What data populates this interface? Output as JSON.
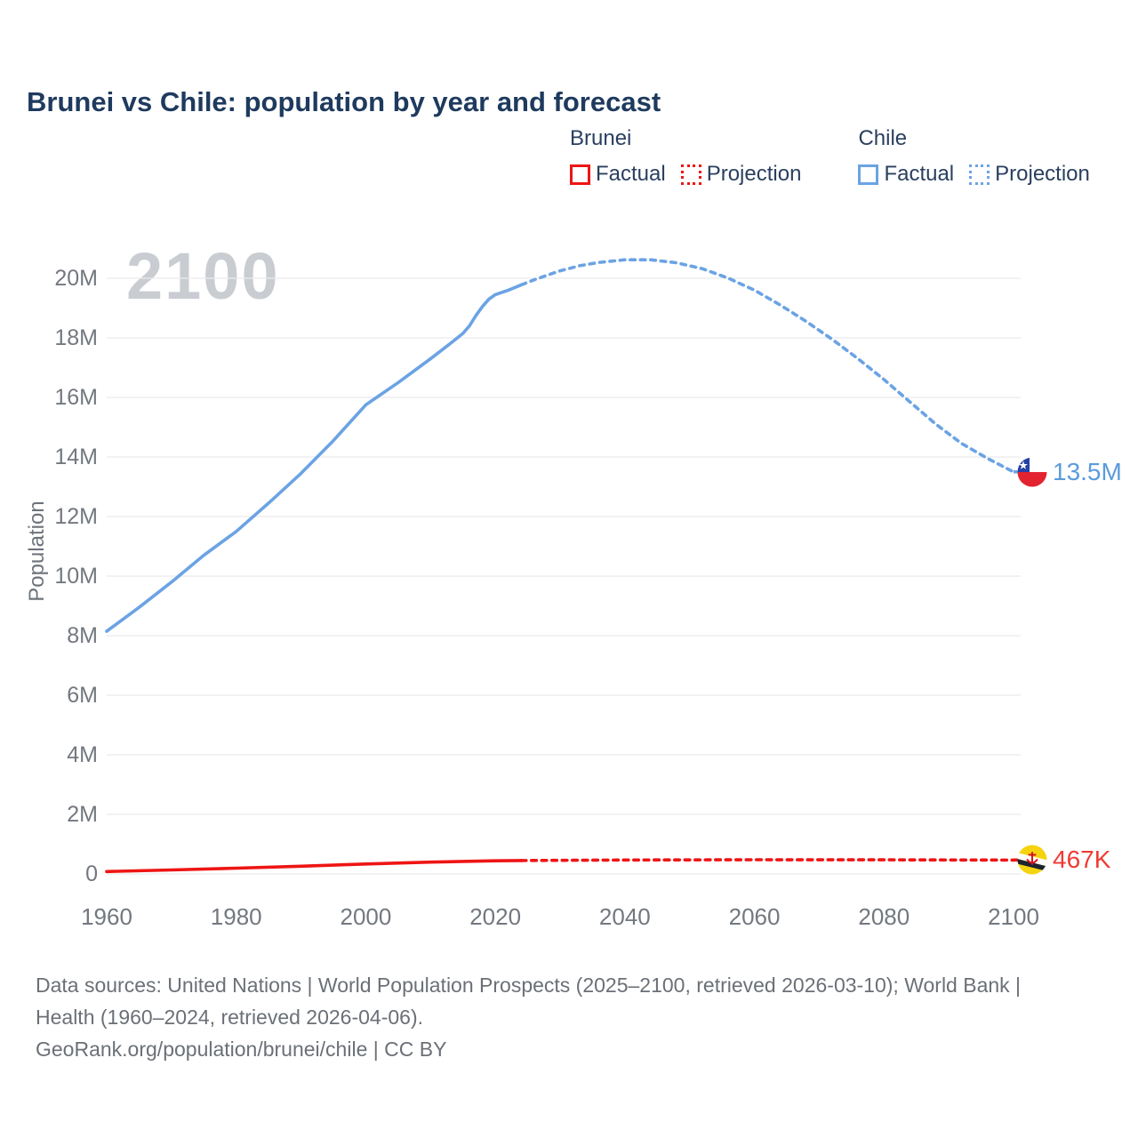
{
  "title": "Brunei vs Chile: population by year and forecast",
  "watermark": "2100",
  "legend": {
    "groups": [
      {
        "name": "Brunei",
        "color": "#ee1515",
        "items": [
          {
            "label": "Factual",
            "style": "solid"
          },
          {
            "label": "Projection",
            "style": "dotted"
          }
        ]
      },
      {
        "name": "Chile",
        "color": "#6ba3e4",
        "items": [
          {
            "label": "Factual",
            "style": "solid"
          },
          {
            "label": "Projection",
            "style": "dotted"
          }
        ]
      }
    ]
  },
  "chart_data": {
    "type": "line",
    "title": "Brunei vs Chile: population by year and forecast",
    "xlabel": "",
    "ylabel": "Population",
    "xlim": [
      1960,
      2100
    ],
    "ylim": [
      0,
      21000000
    ],
    "grid": "horizontal",
    "legend_position": "top-right",
    "xticks": [
      {
        "value": 1960,
        "label": "1960"
      },
      {
        "value": 1980,
        "label": "1980"
      },
      {
        "value": 2000,
        "label": "2000"
      },
      {
        "value": 2020,
        "label": "2020"
      },
      {
        "value": 2040,
        "label": "2040"
      },
      {
        "value": 2060,
        "label": "2060"
      },
      {
        "value": 2080,
        "label": "2080"
      },
      {
        "value": 2100,
        "label": "2100"
      }
    ],
    "yticks": [
      {
        "value": 0,
        "label": "0"
      },
      {
        "value": 2000000,
        "label": "2M"
      },
      {
        "value": 4000000,
        "label": "4M"
      },
      {
        "value": 6000000,
        "label": "6M"
      },
      {
        "value": 8000000,
        "label": "8M"
      },
      {
        "value": 10000000,
        "label": "10M"
      },
      {
        "value": 12000000,
        "label": "12M"
      },
      {
        "value": 14000000,
        "label": "14M"
      },
      {
        "value": 16000000,
        "label": "16M"
      },
      {
        "value": 18000000,
        "label": "18M"
      },
      {
        "value": 20000000,
        "label": "20M"
      }
    ],
    "series": [
      {
        "name": "Chile Factual",
        "color": "#6ba3e4",
        "dash": "solid",
        "points": [
          [
            1960,
            8150000
          ],
          [
            1965,
            8950000
          ],
          [
            1970,
            9800000
          ],
          [
            1975,
            10700000
          ],
          [
            1980,
            11500000
          ],
          [
            1985,
            12450000
          ],
          [
            1990,
            13450000
          ],
          [
            1995,
            14550000
          ],
          [
            2000,
            15750000
          ],
          [
            2005,
            16500000
          ],
          [
            2010,
            17300000
          ],
          [
            2013,
            17800000
          ],
          [
            2015,
            18150000
          ],
          [
            2016,
            18400000
          ],
          [
            2017,
            18750000
          ],
          [
            2018,
            19050000
          ],
          [
            2019,
            19300000
          ],
          [
            2020,
            19450000
          ],
          [
            2022,
            19600000
          ],
          [
            2024,
            19780000
          ]
        ]
      },
      {
        "name": "Chile Projection",
        "color": "#6ba3e4",
        "dash": "dotted",
        "points": [
          [
            2024,
            19780000
          ],
          [
            2026,
            19950000
          ],
          [
            2028,
            20100000
          ],
          [
            2030,
            20250000
          ],
          [
            2033,
            20420000
          ],
          [
            2036,
            20530000
          ],
          [
            2040,
            20620000
          ],
          [
            2044,
            20620000
          ],
          [
            2048,
            20520000
          ],
          [
            2052,
            20320000
          ],
          [
            2056,
            20000000
          ],
          [
            2060,
            19600000
          ],
          [
            2064,
            19100000
          ],
          [
            2068,
            18550000
          ],
          [
            2072,
            17950000
          ],
          [
            2076,
            17300000
          ],
          [
            2080,
            16600000
          ],
          [
            2084,
            15850000
          ],
          [
            2088,
            15100000
          ],
          [
            2092,
            14450000
          ],
          [
            2096,
            13950000
          ],
          [
            2100,
            13500000
          ]
        ]
      },
      {
        "name": "Brunei Factual",
        "color": "#ee1515",
        "dash": "solid",
        "points": [
          [
            1960,
            82000
          ],
          [
            1970,
            133000
          ],
          [
            1980,
            194000
          ],
          [
            1990,
            261000
          ],
          [
            2000,
            333000
          ],
          [
            2010,
            396000
          ],
          [
            2015,
            420000
          ],
          [
            2020,
            442000
          ],
          [
            2024,
            452000
          ]
        ]
      },
      {
        "name": "Brunei Projection",
        "color": "#ee1515",
        "dash": "dotted",
        "points": [
          [
            2024,
            452000
          ],
          [
            2040,
            468000
          ],
          [
            2060,
            477000
          ],
          [
            2080,
            475000
          ],
          [
            2100,
            467000
          ]
        ]
      }
    ],
    "end_labels": [
      {
        "series": "Chile",
        "text": "13.5M",
        "flag": "chile-flag"
      },
      {
        "series": "Brunei",
        "text": "467K",
        "flag": "brunei-flag"
      }
    ]
  },
  "footer": {
    "line1": "Data sources: United Nations | World Population Prospects (2025–2100, retrieved 2026-03-10); World Bank | Health (1960–2024, retrieved 2026-04-06).",
    "line2": "GeoRank.org/population/brunei/chile | CC BY"
  }
}
